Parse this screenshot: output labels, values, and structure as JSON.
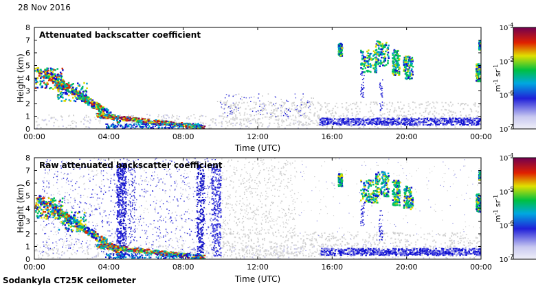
{
  "header": {
    "date": "28 Nov 2016"
  },
  "footer": {
    "instrument": "Sodankyla CT25K ceilometer"
  },
  "chart_data": [
    {
      "type": "heatmap",
      "title": "Attenuated backscatter coefficient",
      "xlabel": "Time (UTC)",
      "ylabel": "Height (km)",
      "x_ticks": [
        "00:00",
        "04:00",
        "08:00",
        "12:00",
        "16:00",
        "20:00",
        "00:00"
      ],
      "x_range_hours": [
        0,
        24
      ],
      "y_ticks": [
        "0",
        "1",
        "2",
        "3",
        "4",
        "5",
        "6",
        "7",
        "8"
      ],
      "ylim": [
        0,
        8
      ],
      "colorbar": {
        "scale": "log",
        "unit_prefix": "m",
        "unit_exp1": "-1",
        "unit_mid": " sr",
        "unit_exp2": "-1",
        "ticks": [
          {
            "value": 0.0001,
            "base": "10",
            "exp": "-4"
          },
          {
            "value": 1e-05,
            "base": "10",
            "exp": "-5"
          },
          {
            "value": 1e-06,
            "base": "10",
            "exp": "-6"
          },
          {
            "value": 1e-07,
            "base": "10",
            "exp": "-7"
          }
        ]
      },
      "features": [
        {
          "desc": "descending cloud layers",
          "t_start": 0,
          "t_end": 4.5,
          "h_top": 5.0,
          "h_bottom": 0.5
        },
        {
          "desc": "strong low layer",
          "t_start": 3.5,
          "t_end": 9.0,
          "h_top": 1.2,
          "h_bottom": 0.1
        },
        {
          "desc": "boundary layer band",
          "t_start": 15.3,
          "t_end": 24,
          "h_top": 0.9,
          "h_bottom": 0.3
        },
        {
          "desc": "high cloud streaks",
          "t_start": 16.3,
          "t_end": 20.6,
          "h_top": 7.0,
          "h_bottom": 3.7
        },
        {
          "desc": "cloud at end of day",
          "t_start": 23.7,
          "t_end": 24,
          "h_top": 7.0,
          "h_bottom": 3.8
        }
      ]
    },
    {
      "type": "heatmap",
      "title": "Raw attenuated backscatter coefficient",
      "xlabel": "Time (UTC)",
      "ylabel": "Height (km)",
      "x_ticks": [
        "00:00",
        "04:00",
        "08:00",
        "12:00",
        "16:00",
        "20:00",
        "00:00"
      ],
      "x_range_hours": [
        0,
        24
      ],
      "y_ticks": [
        "0",
        "1",
        "2",
        "3",
        "4",
        "5",
        "6",
        "7",
        "8"
      ],
      "ylim": [
        0,
        8
      ],
      "colorbar": {
        "scale": "log",
        "unit_prefix": "m",
        "unit_exp1": "-1",
        "unit_mid": " sr",
        "unit_exp2": "-1",
        "ticks": [
          {
            "value": 0.0001,
            "base": "10",
            "exp": "-4"
          },
          {
            "value": 1e-05,
            "base": "10",
            "exp": "-5"
          },
          {
            "value": 1e-06,
            "base": "10",
            "exp": "-6"
          },
          {
            "value": 1e-07,
            "base": "10",
            "exp": "-7"
          }
        ]
      },
      "features": [
        {
          "desc": "descending cloud layers",
          "t_start": 0,
          "t_end": 4.5,
          "h_top": 5.0,
          "h_bottom": 0.5
        },
        {
          "desc": "strong low layer",
          "t_start": 3.5,
          "t_end": 9.0,
          "h_top": 1.2,
          "h_bottom": 0.1
        },
        {
          "desc": "noise columns",
          "t_start": 4.5,
          "t_end": 10.0,
          "h_top": 7.5,
          "h_bottom": 0
        },
        {
          "desc": "boundary layer band",
          "t_start": 15.3,
          "t_end": 24,
          "h_top": 0.9,
          "h_bottom": 0.3
        },
        {
          "desc": "high cloud streaks",
          "t_start": 16.3,
          "t_end": 20.6,
          "h_top": 7.0,
          "h_bottom": 3.7
        },
        {
          "desc": "cloud at end of day",
          "t_start": 23.7,
          "t_end": 24,
          "h_top": 7.0,
          "h_bottom": 3.8
        }
      ]
    }
  ],
  "colormap": [
    "#d8d8f0",
    "#1010d0",
    "#00a0d0",
    "#00c060",
    "#d8d800",
    "#d83000",
    "#800060"
  ]
}
